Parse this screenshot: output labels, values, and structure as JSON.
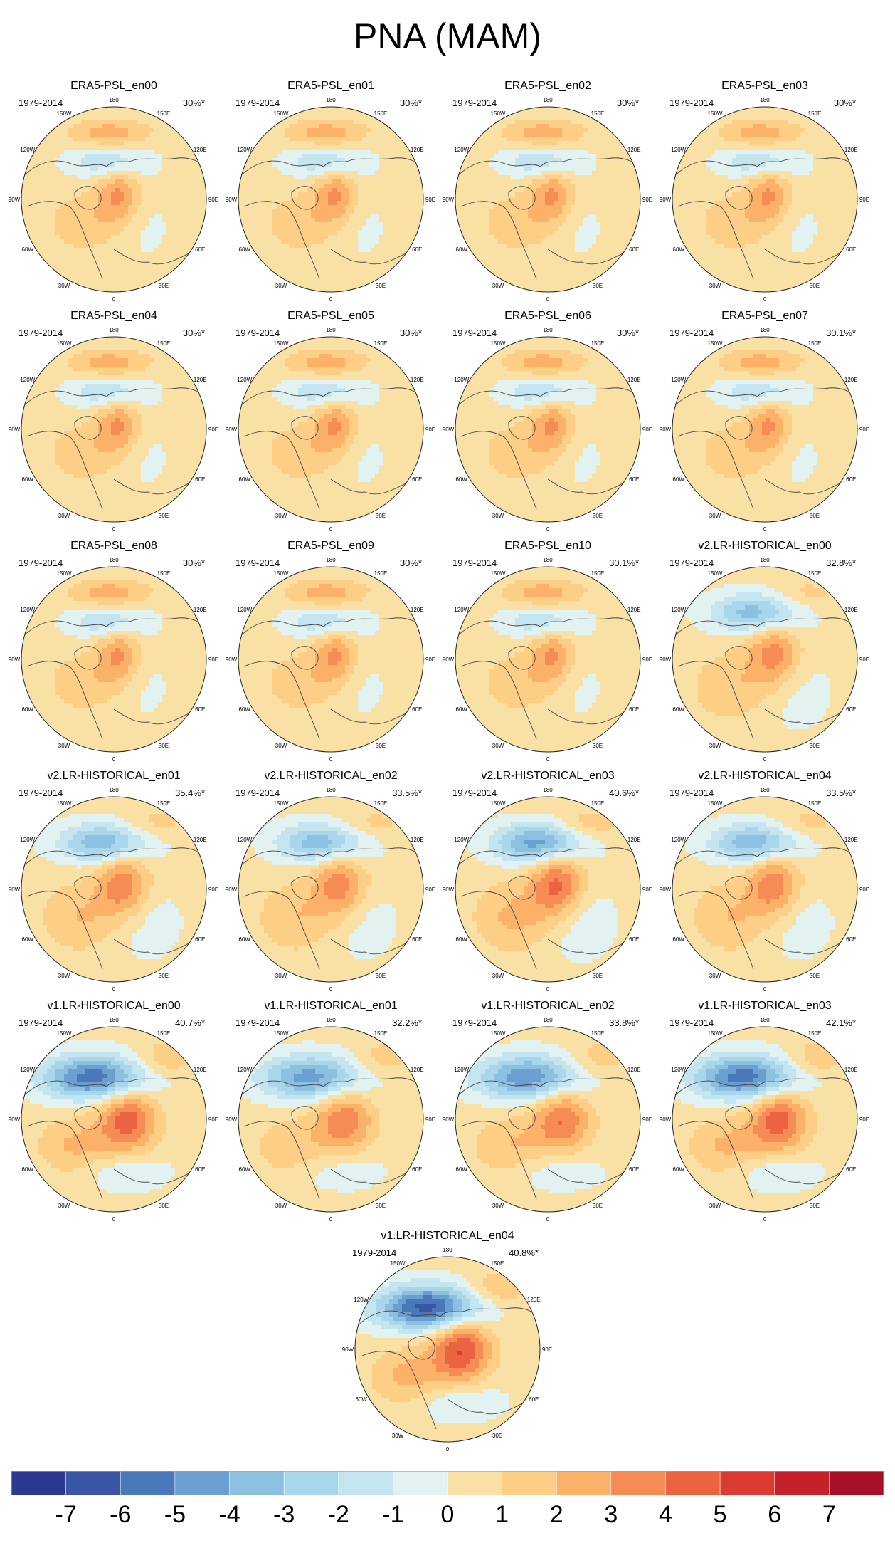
{
  "title": "PNA (MAM)",
  "chart_data": {
    "type": "heatmap",
    "projection": "north polar stereographic",
    "longitude_labels": {
      "lon180": "180",
      "lon150W": "150W",
      "lon150E": "150E",
      "lon120W": "120W",
      "lon120E": "120E",
      "lon90W": "90W",
      "lon90E": "90E",
      "lon60W": "60W",
      "lon60E": "60E",
      "lon30W": "30W",
      "lon30E": "30E",
      "lon0": "0"
    },
    "panels": [
      {
        "title": "ERA5-PSL_en00",
        "period": "1979-2014",
        "variance": "30%*",
        "family": "era5",
        "strength": 1.0
      },
      {
        "title": "ERA5-PSL_en01",
        "period": "1979-2014",
        "variance": "30%*",
        "family": "era5",
        "strength": 1.0
      },
      {
        "title": "ERA5-PSL_en02",
        "period": "1979-2014",
        "variance": "30%*",
        "family": "era5",
        "strength": 1.0
      },
      {
        "title": "ERA5-PSL_en03",
        "period": "1979-2014",
        "variance": "30%*",
        "family": "era5",
        "strength": 1.0
      },
      {
        "title": "ERA5-PSL_en04",
        "period": "1979-2014",
        "variance": "30%*",
        "family": "era5",
        "strength": 1.0
      },
      {
        "title": "ERA5-PSL_en05",
        "period": "1979-2014",
        "variance": "30%*",
        "family": "era5",
        "strength": 1.0
      },
      {
        "title": "ERA5-PSL_en06",
        "period": "1979-2014",
        "variance": "30%*",
        "family": "era5",
        "strength": 1.0
      },
      {
        "title": "ERA5-PSL_en07",
        "period": "1979-2014",
        "variance": "30.1%*",
        "family": "era5",
        "strength": 1.0
      },
      {
        "title": "ERA5-PSL_en08",
        "period": "1979-2014",
        "variance": "30%*",
        "family": "era5",
        "strength": 1.0
      },
      {
        "title": "ERA5-PSL_en09",
        "period": "1979-2014",
        "variance": "30%*",
        "family": "era5",
        "strength": 1.0
      },
      {
        "title": "ERA5-PSL_en10",
        "period": "1979-2014",
        "variance": "30.1%*",
        "family": "era5",
        "strength": 1.0
      },
      {
        "title": "v2.LR-HISTORICAL_en00",
        "period": "1979-2014",
        "variance": "32.8%*",
        "family": "v2",
        "strength": 1.2
      },
      {
        "title": "v2.LR-HISTORICAL_en01",
        "period": "1979-2014",
        "variance": "35.4%*",
        "family": "v2",
        "strength": 1.3
      },
      {
        "title": "v2.LR-HISTORICAL_en02",
        "period": "1979-2014",
        "variance": "33.5%*",
        "family": "v2",
        "strength": 1.25
      },
      {
        "title": "v2.LR-HISTORICAL_en03",
        "period": "1979-2014",
        "variance": "40.6%*",
        "family": "v2",
        "strength": 1.5
      },
      {
        "title": "v2.LR-HISTORICAL_en04",
        "period": "1979-2014",
        "variance": "33.5%*",
        "family": "v2",
        "strength": 1.3
      },
      {
        "title": "v1.LR-HISTORICAL_en00",
        "period": "1979-2014",
        "variance": "40.7%*",
        "family": "v1",
        "strength": 1.6
      },
      {
        "title": "v1.LR-HISTORICAL_en01",
        "period": "1979-2014",
        "variance": "32.2%*",
        "family": "v1",
        "strength": 1.3
      },
      {
        "title": "v1.LR-HISTORICAL_en02",
        "period": "1979-2014",
        "variance": "33.8%*",
        "family": "v1",
        "strength": 1.4
      },
      {
        "title": "v1.LR-HISTORICAL_en03",
        "period": "1979-2014",
        "variance": "42.1%*",
        "family": "v1",
        "strength": 1.6
      },
      {
        "title": "v1.LR-HISTORICAL_en04",
        "period": "1979-2014",
        "variance": "40.8%*",
        "family": "v1",
        "strength": 1.8
      }
    ],
    "colorbar": {
      "ticks": [
        "-7",
        "-6",
        "-5",
        "-4",
        "-3",
        "-2",
        "-1",
        "0",
        "1",
        "2",
        "3",
        "4",
        "5",
        "6",
        "7"
      ],
      "boundaries": [
        -7,
        -6,
        -5,
        -4,
        -3,
        -2,
        -1,
        0,
        1,
        2,
        3,
        4,
        5,
        6,
        7
      ],
      "colors": [
        "#2b3990",
        "#3b55a6",
        "#4a78b8",
        "#6a9fcf",
        "#8cbfe0",
        "#a8d6ea",
        "#c4e5f0",
        "#e2f2f0",
        "#f9e1a6",
        "#fdce85",
        "#fbb16a",
        "#f58c55",
        "#ec6341",
        "#dc3b31",
        "#c5212a",
        "#a8102a"
      ]
    }
  }
}
